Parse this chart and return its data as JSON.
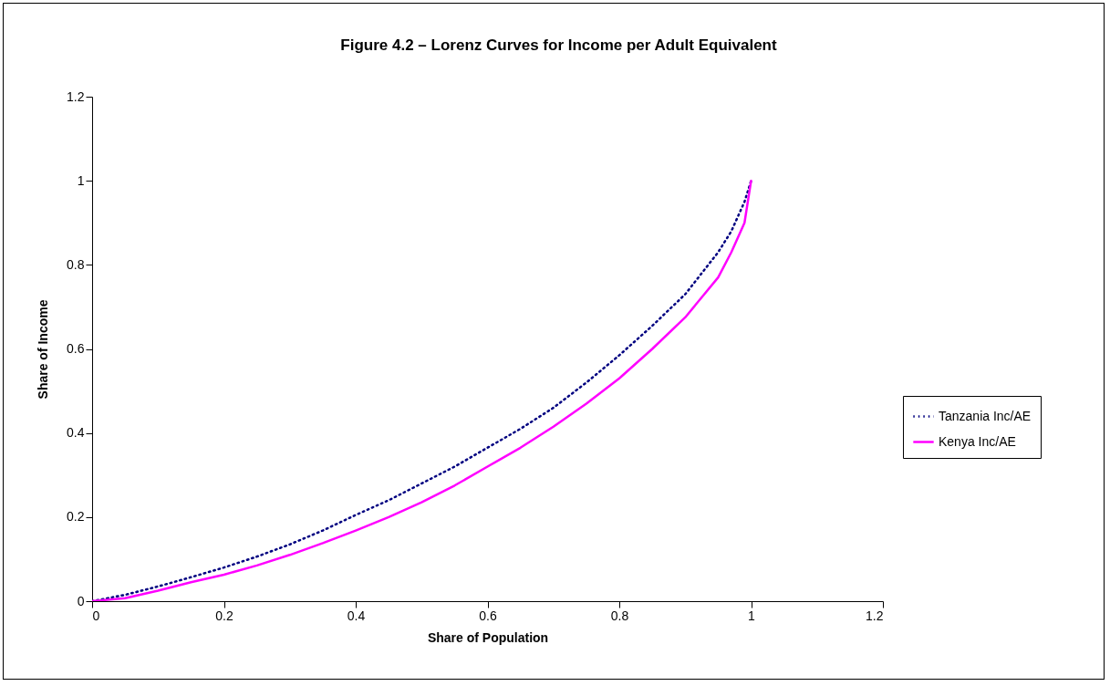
{
  "chart_data": {
    "type": "line",
    "title": "Figure 4.2 – Lorenz Curves for Income per Adult Equivalent",
    "xlabel": "Share of Population",
    "ylabel": "Share of Income",
    "x": [
      0,
      0.05,
      0.1,
      0.15,
      0.2,
      0.25,
      0.3,
      0.35,
      0.4,
      0.45,
      0.5,
      0.55,
      0.6,
      0.65,
      0.7,
      0.75,
      0.8,
      0.85,
      0.9,
      0.95,
      0.97,
      0.99,
      1
    ],
    "series": [
      {
        "name": "Tanzania Inc/AE",
        "color": "#000080",
        "line_style": "dotted",
        "values": [
          0,
          0.015,
          0.035,
          0.057,
          0.08,
          0.106,
          0.135,
          0.168,
          0.205,
          0.24,
          0.28,
          0.32,
          0.365,
          0.41,
          0.46,
          0.52,
          0.585,
          0.655,
          0.73,
          0.83,
          0.88,
          0.95,
          1
        ]
      },
      {
        "name": "Kenya Inc/AE",
        "color": "#ff00ff",
        "line_style": "solid",
        "values": [
          0,
          0.007,
          0.025,
          0.045,
          0.063,
          0.085,
          0.11,
          0.138,
          0.168,
          0.2,
          0.235,
          0.275,
          0.32,
          0.365,
          0.415,
          0.47,
          0.53,
          0.6,
          0.675,
          0.77,
          0.83,
          0.9,
          1
        ]
      }
    ],
    "xlim": [
      0,
      1.2
    ],
    "xticks": [
      0,
      0.2,
      0.4,
      0.6,
      0.8,
      1,
      1.2
    ],
    "ylim": [
      0,
      1.2
    ],
    "yticks": [
      0,
      0.2,
      0.4,
      0.6,
      0.8,
      1,
      1.2
    ],
    "grid": false,
    "legend": "right",
    "marker": "none"
  }
}
